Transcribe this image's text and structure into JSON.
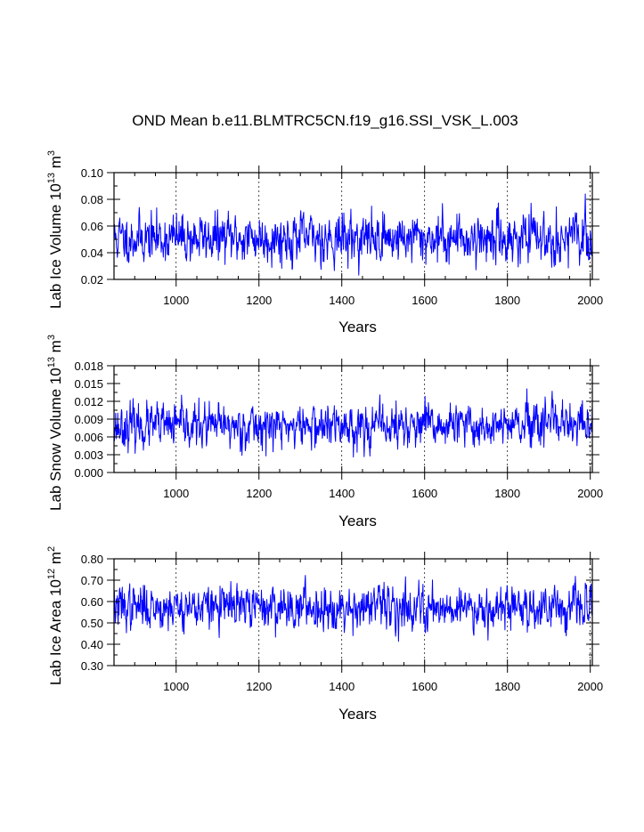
{
  "title": "OND Mean b.e11.BLMTRC5CN.f19_g16.SSI_VSK_L.003",
  "colors": {
    "series": "#0000ff",
    "axis": "#000000"
  },
  "chart_data": [
    {
      "type": "line",
      "series": [
        {
          "name": "Lab Ice Volume",
          "mean": 0.051,
          "sd": 0.009,
          "seed": 11
        }
      ],
      "x_range": [
        850,
        2005
      ],
      "xlim": [
        850,
        2005
      ],
      "ylim": [
        0.02,
        0.1
      ],
      "x_ticks": [
        1000,
        1200,
        1400,
        1600,
        1800,
        2000
      ],
      "x_tick_labels": [
        "1000",
        "1200",
        "1400",
        "1600",
        "1800",
        "2000"
      ],
      "y_ticks": [
        0.02,
        0.04,
        0.06,
        0.08,
        0.1
      ],
      "y_tick_labels": [
        "0.02",
        "0.04",
        "0.06",
        "0.08",
        "0.10"
      ],
      "xlabel": "Years",
      "ylabel_main": "Lab Ice Volume 10",
      "ylabel_exp": "13",
      "ylabel_unit": " m",
      "ylabel_unit_exp": "3",
      "grid": "vertical dashed"
    },
    {
      "type": "line",
      "series": [
        {
          "name": "Lab Snow Volume",
          "mean": 0.0078,
          "sd": 0.0018,
          "seed": 23
        }
      ],
      "x_range": [
        850,
        2005
      ],
      "xlim": [
        850,
        2005
      ],
      "ylim": [
        0.0,
        0.018
      ],
      "x_ticks": [
        1000,
        1200,
        1400,
        1600,
        1800,
        2000
      ],
      "x_tick_labels": [
        "1000",
        "1200",
        "1400",
        "1600",
        "1800",
        "2000"
      ],
      "y_ticks": [
        0.0,
        0.003,
        0.006,
        0.009,
        0.012,
        0.015,
        0.018
      ],
      "y_tick_labels": [
        "0.000",
        "0.003",
        "0.006",
        "0.009",
        "0.012",
        "0.015",
        "0.018"
      ],
      "xlabel": "Years",
      "ylabel_main": "Lab Snow Volume 10",
      "ylabel_exp": "13",
      "ylabel_unit": " m",
      "ylabel_unit_exp": "3",
      "grid": "vertical dashed"
    },
    {
      "type": "line",
      "series": [
        {
          "name": "Lab Ice Area",
          "mean": 0.575,
          "sd": 0.05,
          "seed": 37
        }
      ],
      "x_range": [
        850,
        2005
      ],
      "xlim": [
        850,
        2005
      ],
      "ylim": [
        0.3,
        0.8
      ],
      "x_ticks": [
        1000,
        1200,
        1400,
        1600,
        1800,
        2000
      ],
      "x_tick_labels": [
        "1000",
        "1200",
        "1400",
        "1600",
        "1800",
        "2000"
      ],
      "y_ticks": [
        0.3,
        0.4,
        0.5,
        0.6,
        0.7,
        0.8
      ],
      "y_tick_labels": [
        "0.30",
        "0.40",
        "0.50",
        "0.60",
        "0.70",
        "0.80"
      ],
      "xlabel": "Years",
      "ylabel_main": "Lab Ice Area 10",
      "ylabel_exp": "12",
      "ylabel_unit": " m",
      "ylabel_unit_exp": "2",
      "grid": "vertical dashed"
    }
  ]
}
